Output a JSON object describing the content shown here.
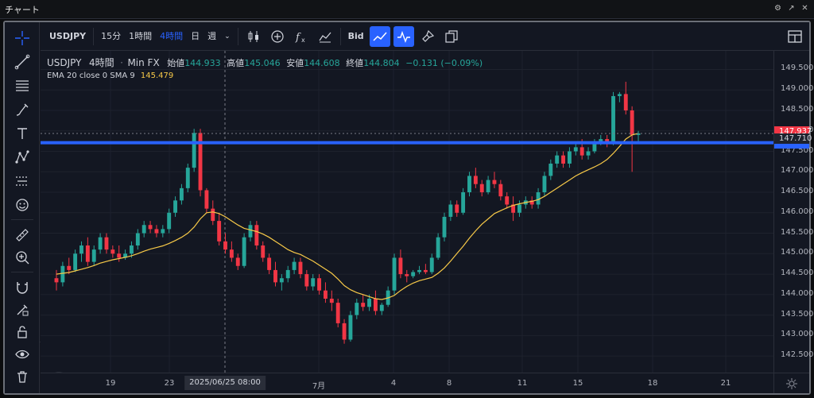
{
  "window": {
    "title": "チャート",
    "buttons": [
      "settings-icon",
      "popout-icon",
      "close-icon"
    ]
  },
  "toolbar": {
    "symbol": "USDJPY",
    "intervals": [
      {
        "label": "15分",
        "active": false
      },
      {
        "label": "1時間",
        "active": false
      },
      {
        "label": "4時間",
        "active": true
      },
      {
        "label": "日",
        "active": false
      },
      {
        "label": "週",
        "active": false
      }
    ],
    "bid_label": "Bid"
  },
  "legend": {
    "symbol": "USDJPY",
    "interval": "4時間",
    "source": "Min FX",
    "open_label": "始値",
    "open": "144.933",
    "high_label": "高値",
    "high": "145.046",
    "low_label": "安値",
    "low": "144.608",
    "close_label": "終値",
    "close": "144.804",
    "change": "−0.131 (−0.09%)",
    "indicator": "EMA 20 close 0 SMA 9",
    "indicator_value": "145.479"
  },
  "price_axis": {
    "ticks": [
      "149.500",
      "149.000",
      "148.500",
      "148.000",
      "147.500",
      "147.000",
      "146.500",
      "146.000",
      "145.500",
      "145.000",
      "144.500",
      "144.000",
      "143.500",
      "143.000",
      "142.500"
    ],
    "last_price": "147.937",
    "crosshair_price": "147.710"
  },
  "time_axis": {
    "ticks": [
      "19",
      "23",
      "7月",
      "4",
      "8",
      "11",
      "15",
      "18",
      "21"
    ],
    "crosshair_label": "2025/06/25  08:00"
  },
  "colors": {
    "up": "#26a69a",
    "down": "#f23645",
    "ema": "#f7c948",
    "hline": "#2962ff",
    "accent": "#2962ff"
  },
  "chart_data": {
    "type": "candlestick",
    "symbol": "USDJPY",
    "interval": "4時間",
    "ylim": [
      142.25,
      149.8
    ],
    "candles": [
      [
        144.4,
        144.6,
        144.1,
        144.3
      ],
      [
        144.3,
        144.8,
        144.2,
        144.7
      ],
      [
        144.7,
        144.9,
        144.5,
        144.6
      ],
      [
        144.6,
        145.1,
        144.55,
        145.0
      ],
      [
        145.0,
        145.3,
        144.8,
        145.2
      ],
      [
        145.2,
        145.4,
        144.7,
        144.8
      ],
      [
        144.8,
        145.2,
        144.7,
        145.1
      ],
      [
        145.1,
        145.5,
        145.0,
        145.4
      ],
      [
        145.4,
        145.5,
        145.0,
        145.1
      ],
      [
        145.1,
        145.2,
        144.9,
        145.0
      ],
      [
        145.0,
        145.2,
        144.8,
        144.9
      ],
      [
        144.9,
        145.1,
        144.85,
        145.0
      ],
      [
        145.0,
        145.3,
        144.9,
        145.2
      ],
      [
        145.2,
        145.6,
        145.1,
        145.5
      ],
      [
        145.5,
        145.8,
        145.4,
        145.7
      ],
      [
        145.7,
        145.8,
        145.5,
        145.6
      ],
      [
        145.6,
        145.7,
        145.4,
        145.5
      ],
      [
        145.5,
        145.7,
        145.4,
        145.6
      ],
      [
        145.6,
        146.1,
        145.5,
        146.0
      ],
      [
        146.0,
        146.4,
        145.9,
        146.3
      ],
      [
        146.3,
        146.7,
        146.2,
        146.6
      ],
      [
        146.6,
        147.2,
        146.5,
        147.1
      ],
      [
        147.1,
        148.05,
        147.0,
        147.95
      ],
      [
        147.95,
        148.05,
        146.4,
        146.55
      ],
      [
        146.55,
        146.6,
        146.0,
        146.1
      ],
      [
        146.1,
        146.3,
        145.7,
        145.8
      ],
      [
        145.8,
        146.0,
        145.2,
        145.3
      ],
      [
        145.3,
        145.5,
        145.0,
        145.1
      ],
      [
        145.1,
        145.3,
        144.8,
        144.9
      ],
      [
        144.9,
        145.0,
        144.6,
        144.7
      ],
      [
        144.7,
        145.5,
        144.65,
        145.4
      ],
      [
        145.4,
        145.8,
        145.3,
        145.7
      ],
      [
        145.7,
        145.8,
        145.1,
        145.2
      ],
      [
        145.2,
        145.3,
        144.8,
        144.9
      ],
      [
        144.9,
        145.0,
        144.5,
        144.6
      ],
      [
        144.6,
        144.8,
        144.2,
        144.3
      ],
      [
        144.3,
        144.5,
        144.1,
        144.4
      ],
      [
        144.4,
        144.7,
        144.3,
        144.6
      ],
      [
        144.6,
        144.9,
        144.5,
        144.8
      ],
      [
        144.8,
        144.9,
        144.4,
        144.5
      ],
      [
        144.5,
        144.6,
        144.1,
        144.2
      ],
      [
        144.2,
        144.5,
        144.1,
        144.4
      ],
      [
        144.4,
        144.5,
        144.0,
        144.1
      ],
      [
        144.1,
        144.3,
        143.8,
        143.9
      ],
      [
        143.9,
        144.1,
        143.6,
        143.8
      ],
      [
        143.8,
        143.9,
        143.2,
        143.3
      ],
      [
        143.3,
        143.4,
        142.8,
        142.9
      ],
      [
        142.9,
        143.6,
        142.85,
        143.5
      ],
      [
        143.5,
        143.9,
        143.4,
        143.8
      ],
      [
        143.8,
        144.0,
        143.6,
        143.7
      ],
      [
        143.7,
        144.0,
        143.6,
        143.9
      ],
      [
        143.9,
        144.1,
        143.5,
        143.6
      ],
      [
        143.6,
        143.8,
        143.5,
        143.75
      ],
      [
        143.75,
        144.2,
        143.7,
        144.1
      ],
      [
        144.1,
        145.0,
        144.0,
        144.9
      ],
      [
        144.9,
        145.1,
        144.4,
        144.5
      ],
      [
        144.5,
        144.6,
        144.3,
        144.45
      ],
      [
        144.45,
        144.6,
        144.4,
        144.55
      ],
      [
        144.55,
        144.7,
        144.5,
        144.6
      ],
      [
        144.6,
        144.75,
        144.5,
        144.55
      ],
      [
        144.55,
        145.0,
        144.5,
        144.9
      ],
      [
        144.9,
        145.5,
        144.85,
        145.4
      ],
      [
        145.4,
        146.0,
        145.3,
        145.9
      ],
      [
        145.9,
        146.3,
        145.8,
        146.2
      ],
      [
        146.2,
        146.3,
        145.9,
        146.0
      ],
      [
        146.0,
        146.6,
        145.95,
        146.5
      ],
      [
        146.5,
        147.0,
        146.4,
        146.9
      ],
      [
        146.9,
        147.1,
        146.6,
        146.7
      ],
      [
        146.7,
        146.8,
        146.4,
        146.5
      ],
      [
        146.5,
        146.9,
        146.45,
        146.8
      ],
      [
        146.8,
        147.0,
        146.6,
        146.7
      ],
      [
        146.7,
        146.8,
        146.3,
        146.4
      ],
      [
        146.4,
        146.5,
        146.1,
        146.2
      ],
      [
        146.2,
        146.4,
        145.8,
        146.0
      ],
      [
        146.0,
        146.3,
        145.9,
        146.2
      ],
      [
        146.2,
        146.4,
        146.1,
        146.3
      ],
      [
        146.3,
        146.4,
        146.1,
        146.2
      ],
      [
        146.2,
        146.6,
        146.1,
        146.5
      ],
      [
        146.5,
        147.0,
        146.4,
        146.9
      ],
      [
        146.9,
        147.3,
        146.8,
        147.2
      ],
      [
        147.2,
        147.5,
        147.1,
        147.4
      ],
      [
        147.4,
        147.5,
        147.1,
        147.2
      ],
      [
        147.2,
        147.6,
        147.1,
        147.5
      ],
      [
        147.5,
        147.7,
        147.4,
        147.6
      ],
      [
        147.6,
        147.8,
        147.3,
        147.4
      ],
      [
        147.4,
        147.6,
        147.3,
        147.5
      ],
      [
        147.5,
        147.8,
        147.45,
        147.7
      ],
      [
        147.7,
        147.9,
        147.65,
        147.8
      ],
      [
        147.8,
        147.9,
        147.6,
        147.7
      ],
      [
        147.7,
        148.95,
        147.65,
        148.85
      ],
      [
        148.85,
        148.95,
        148.7,
        148.9
      ],
      [
        148.9,
        149.2,
        148.4,
        148.5
      ],
      [
        148.5,
        148.6,
        147.0,
        147.9
      ],
      [
        147.9,
        148.0,
        147.7,
        147.94
      ]
    ],
    "ema": [
      144.5,
      144.52,
      144.54,
      144.58,
      144.62,
      144.66,
      144.71,
      144.77,
      144.81,
      144.85,
      144.88,
      144.91,
      144.95,
      145.0,
      145.06,
      145.11,
      145.15,
      145.19,
      145.25,
      145.32,
      145.4,
      145.5,
      145.65,
      145.85,
      146.0,
      146.02,
      145.98,
      145.9,
      145.8,
      145.7,
      145.62,
      145.58,
      145.54,
      145.48,
      145.4,
      145.3,
      145.2,
      145.1,
      145.03,
      144.98,
      144.9,
      144.82,
      144.72,
      144.62,
      144.52,
      144.38,
      144.22,
      144.12,
      144.05,
      144.0,
      143.95,
      143.9,
      143.88,
      143.92,
      143.98,
      144.1,
      144.2,
      144.28,
      144.34,
      144.38,
      144.42,
      144.52,
      144.65,
      144.82,
      145.0,
      145.18,
      145.38,
      145.56,
      145.72,
      145.85,
      145.98,
      146.05,
      146.12,
      146.18,
      146.22,
      146.25,
      146.28,
      146.32,
      146.4,
      146.5,
      146.6,
      146.7,
      146.8,
      146.9,
      146.98,
      147.05,
      147.12,
      147.2,
      147.3,
      147.45,
      147.62,
      147.8,
      147.9,
      147.94
    ],
    "crosshair_price": 147.71,
    "crosshair_time": "2025/06/25  08:00",
    "x_labels": [
      "19",
      "23",
      "7月",
      "4",
      "8",
      "11",
      "15",
      "18",
      "21"
    ]
  }
}
